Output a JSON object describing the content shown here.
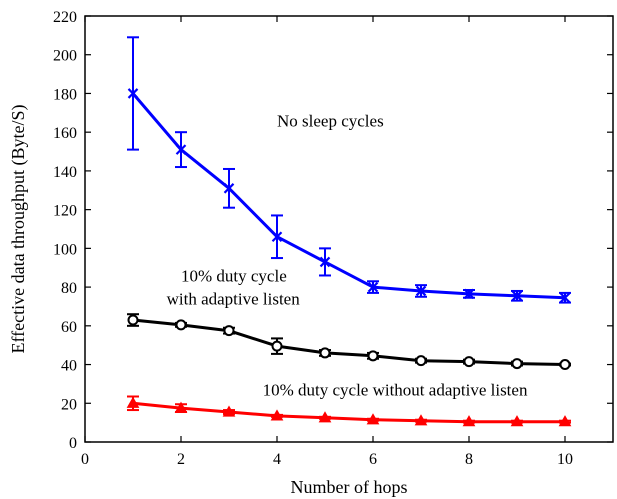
{
  "chart_data": {
    "type": "line",
    "xlabel": "Number of hops",
    "ylabel": "Effective data throughput (Byte/S)",
    "xlim": [
      0,
      11
    ],
    "ylim": [
      0,
      220
    ],
    "xticks": [
      0,
      2,
      4,
      6,
      8,
      10
    ],
    "yticks": [
      0,
      20,
      40,
      60,
      80,
      100,
      120,
      140,
      160,
      180,
      200,
      220
    ],
    "grid": false,
    "x": [
      1,
      2,
      3,
      4,
      5,
      6,
      7,
      8,
      9,
      10
    ],
    "series": [
      {
        "color": "#0000ff",
        "marker": "x",
        "values": [
          180,
          151,
          131,
          106,
          93,
          80,
          78,
          76.5,
          75.5,
          74.5
        ],
        "errors": [
          29,
          9,
          10,
          11,
          7,
          3,
          3,
          2,
          2.5,
          2.5
        ]
      },
      {
        "color": "#000000",
        "marker": "circle",
        "values": [
          63,
          60.5,
          57.5,
          49.5,
          46,
          44.5,
          42,
          41.5,
          40.5,
          40
        ],
        "errors": [
          3,
          1,
          1.5,
          4,
          1.5,
          1.5,
          1,
          1,
          1,
          0.5
        ]
      },
      {
        "color": "#ff0000",
        "marker": "triangle",
        "values": [
          20,
          17.5,
          15.5,
          13.5,
          12.5,
          11.5,
          11,
          10.5,
          10.5,
          10.5
        ],
        "errors": [
          3.5,
          2,
          1,
          0.5,
          0.5,
          0.5,
          0.5,
          0.5,
          0.5,
          0.5
        ]
      }
    ],
    "annotations": [
      {
        "text": "No sleep cycles",
        "x": 4.0,
        "y": 163
      },
      {
        "text": "10% duty cycle",
        "x": 2.0,
        "y": 83
      },
      {
        "text": "with adaptive listen",
        "x": 1.7,
        "y": 71
      },
      {
        "text": "10% duty cycle without adaptive listen",
        "x": 3.7,
        "y": 24
      }
    ]
  }
}
